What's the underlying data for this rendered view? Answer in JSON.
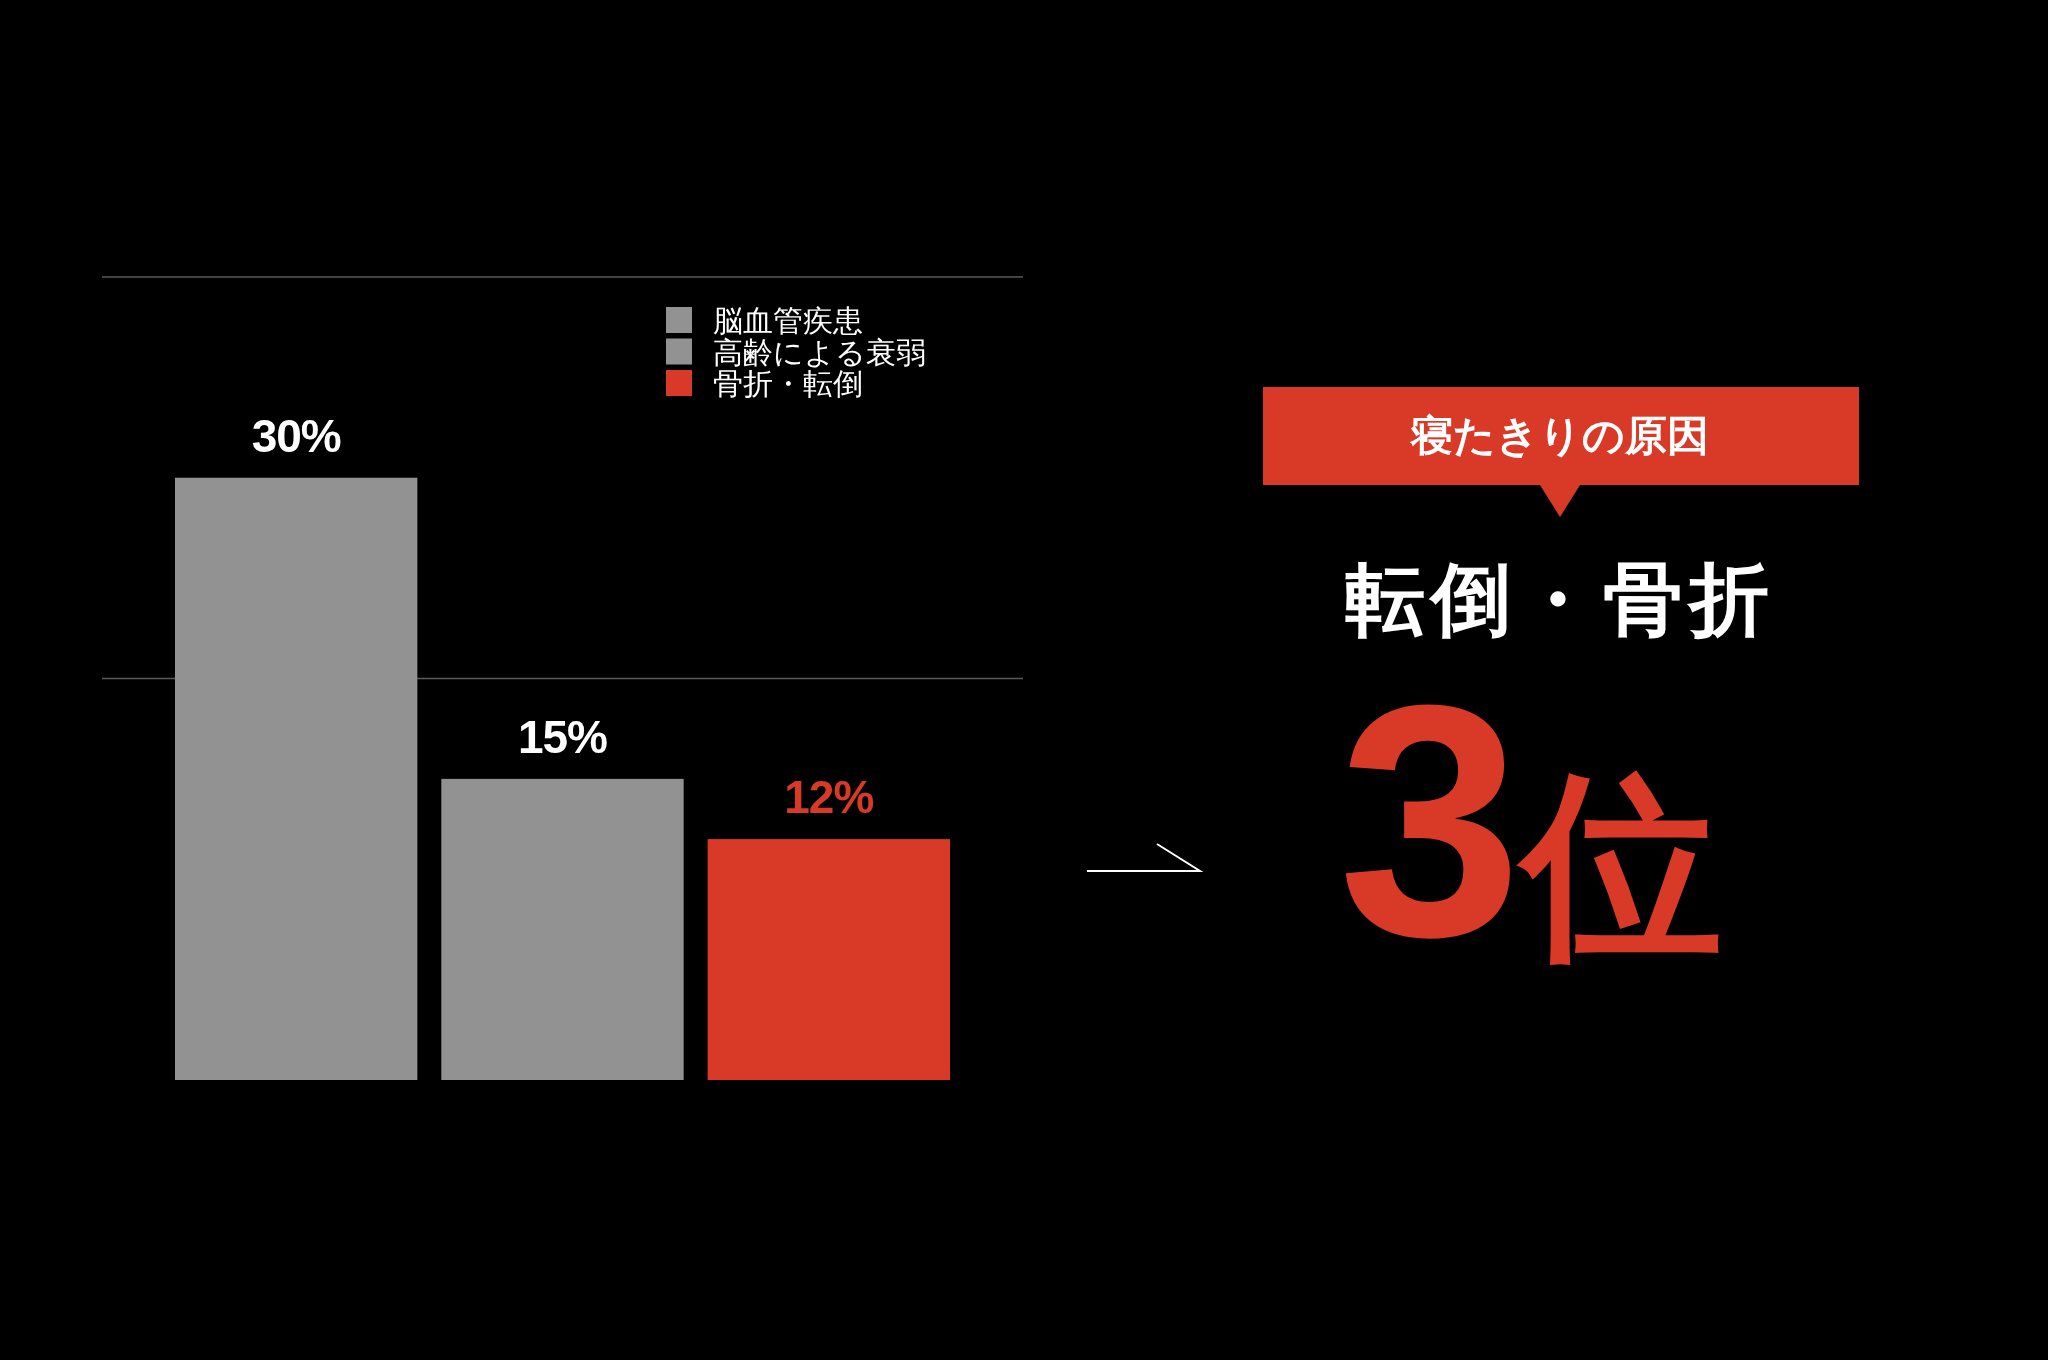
{
  "chart_data": [
    {
      "type": "bar",
      "categories": [
        null
      ],
      "series": [
        {
          "name": "脳血管疾患",
          "color": "#929292",
          "values": [
            30
          ],
          "value_labels": [
            "30%"
          ]
        },
        {
          "name": "高齢による衰弱",
          "color": "#929292",
          "values": [
            15
          ],
          "value_labels": [
            "15%"
          ]
        },
        {
          "name": "骨折・転倒",
          "color": "#d93a27",
          "values": [
            12
          ],
          "value_labels": [
            "12%"
          ]
        }
      ],
      "ylim": [
        0,
        40
      ],
      "ref_lines": [
        {
          "axis": "y",
          "value": 20,
          "color": "#5a5a5a"
        },
        {
          "axis": "y",
          "value": 40,
          "color": "#5a5a5a"
        }
      ],
      "legend": "top right"
    },
    {
      "type": "other",
      "title": "寝たきりの原因",
      "subtitle": "転倒・骨折",
      "annotations": [
        "3位"
      ]
    }
  ]
}
